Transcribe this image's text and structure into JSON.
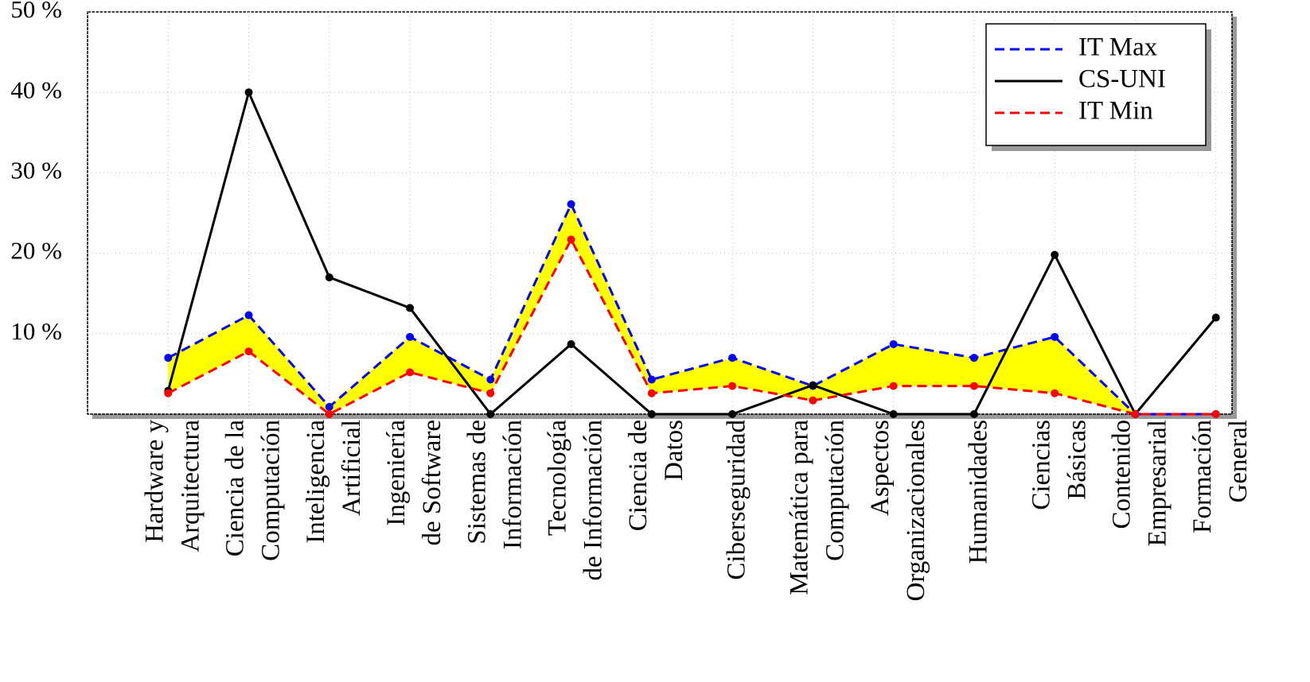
{
  "chart_data": {
    "type": "line",
    "categories": [
      [
        "Hardware y",
        "Arquitectura"
      ],
      [
        "Ciencia de la",
        "Computación"
      ],
      [
        "Inteligencia",
        "Artificial"
      ],
      [
        "Ingeniería",
        "de Software"
      ],
      [
        "Sistemas de",
        "Información"
      ],
      [
        "Tecnología",
        "de Información"
      ],
      [
        "Ciencia de",
        "Datos"
      ],
      [
        "Ciberseguridad"
      ],
      [
        "Matemática para",
        "Computación"
      ],
      [
        "Aspectos",
        "Organizacionales"
      ],
      [
        "Humanidades"
      ],
      [
        "Ciencias",
        "Básicas"
      ],
      [
        "Contenido",
        "Empresarial"
      ],
      [
        "Formación",
        "General"
      ]
    ],
    "series": [
      {
        "name": "IT Max",
        "color": "#0000ff",
        "dashed": true,
        "values": [
          7,
          12.3,
          0.9,
          9.6,
          4.3,
          26.1,
          4.3,
          7,
          3.5,
          8.7,
          7,
          9.6,
          0,
          0
        ]
      },
      {
        "name": "CS-UNI",
        "color": "#000000",
        "dashed": false,
        "values": [
          2.9,
          40,
          17,
          13.2,
          0,
          8.7,
          0,
          0,
          3.6,
          0,
          0,
          19.8,
          0,
          12
        ]
      },
      {
        "name": "IT Min",
        "color": "#ff0000",
        "dashed": true,
        "values": [
          2.6,
          7.8,
          0,
          5.2,
          2.6,
          21.7,
          2.6,
          3.5,
          1.7,
          3.5,
          3.5,
          2.6,
          0,
          0
        ]
      }
    ],
    "fill_between": {
      "series": [
        0,
        2
      ],
      "color": "#ffff00"
    },
    "ylim": [
      0,
      50
    ],
    "yticks": [
      {
        "value": 10,
        "label": "10 %"
      },
      {
        "value": 20,
        "label": "20 %"
      },
      {
        "value": 30,
        "label": "30 %"
      },
      {
        "value": 40,
        "label": "40 %"
      },
      {
        "value": 50,
        "label": "50 %"
      }
    ],
    "grid": true,
    "legend": "upper right"
  }
}
